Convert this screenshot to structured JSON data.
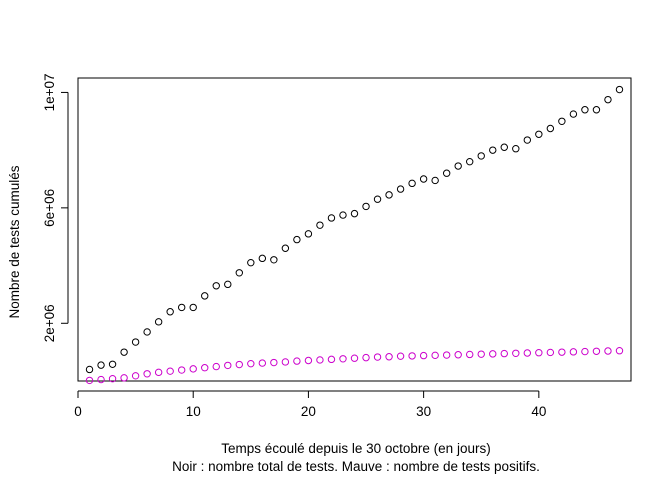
{
  "chart_data": {
    "type": "scatter",
    "xlabel": "Temps écoulé depuis le 30 octobre (en jours)",
    "subtitle": "Noir : nombre total de tests. Mauve : nombre de tests positifs.",
    "ylabel": "Nombre de tests cumulés",
    "xlim": [
      0,
      48
    ],
    "ylim": [
      0,
      10500000
    ],
    "x_ticks": [
      0,
      10,
      20,
      30,
      40
    ],
    "x_tick_labels": [
      "0",
      "10",
      "20",
      "30",
      "40"
    ],
    "y_ticks": [
      2000000,
      6000000,
      10000000
    ],
    "y_tick_labels": [
      "2e+06",
      "6e+06",
      "1e+07"
    ],
    "grid": false,
    "series": [
      {
        "color": "#000000",
        "marker": "open-circle",
        "x": [
          1,
          2,
          3,
          4,
          5,
          6,
          7,
          8,
          9,
          10,
          11,
          12,
          13,
          14,
          15,
          16,
          17,
          18,
          19,
          20,
          21,
          22,
          23,
          24,
          25,
          26,
          27,
          28,
          29,
          30,
          31,
          32,
          33,
          34,
          35,
          36,
          37,
          38,
          39,
          40,
          41,
          42,
          43,
          44,
          45,
          46,
          47
        ],
        "y": [
          400000,
          550000,
          580000,
          1000000,
          1350000,
          1700000,
          2050000,
          2400000,
          2550000,
          2550000,
          2950000,
          3300000,
          3350000,
          3750000,
          4100000,
          4250000,
          4200000,
          4600000,
          4900000,
          5100000,
          5400000,
          5650000,
          5750000,
          5800000,
          6050000,
          6300000,
          6450000,
          6650000,
          6850000,
          7000000,
          6950000,
          7200000,
          7450000,
          7600000,
          7800000,
          8000000,
          8100000,
          8050000,
          8350000,
          8550000,
          8750000,
          9000000,
          9250000,
          9400000,
          9400000,
          9750000,
          10100000
        ]
      },
      {
        "color": "#cc00cc",
        "marker": "open-circle",
        "x": [
          1,
          2,
          3,
          4,
          5,
          6,
          7,
          8,
          9,
          10,
          11,
          12,
          13,
          14,
          15,
          16,
          17,
          18,
          19,
          20,
          21,
          22,
          23,
          24,
          25,
          26,
          27,
          28,
          29,
          30,
          31,
          32,
          33,
          34,
          35,
          36,
          37,
          38,
          39,
          40,
          41,
          42,
          43,
          44,
          45,
          46,
          47
        ],
        "y": [
          20000,
          50000,
          80000,
          110000,
          180000,
          250000,
          300000,
          340000,
          380000,
          420000,
          460000,
          500000,
          540000,
          570000,
          600000,
          620000,
          640000,
          660000,
          690000,
          710000,
          730000,
          750000,
          770000,
          790000,
          810000,
          830000,
          840000,
          860000,
          870000,
          880000,
          890000,
          900000,
          910000,
          920000,
          930000,
          940000,
          950000,
          960000,
          970000,
          980000,
          990000,
          1000000,
          1010000,
          1020000,
          1030000,
          1040000,
          1050000
        ]
      }
    ]
  }
}
